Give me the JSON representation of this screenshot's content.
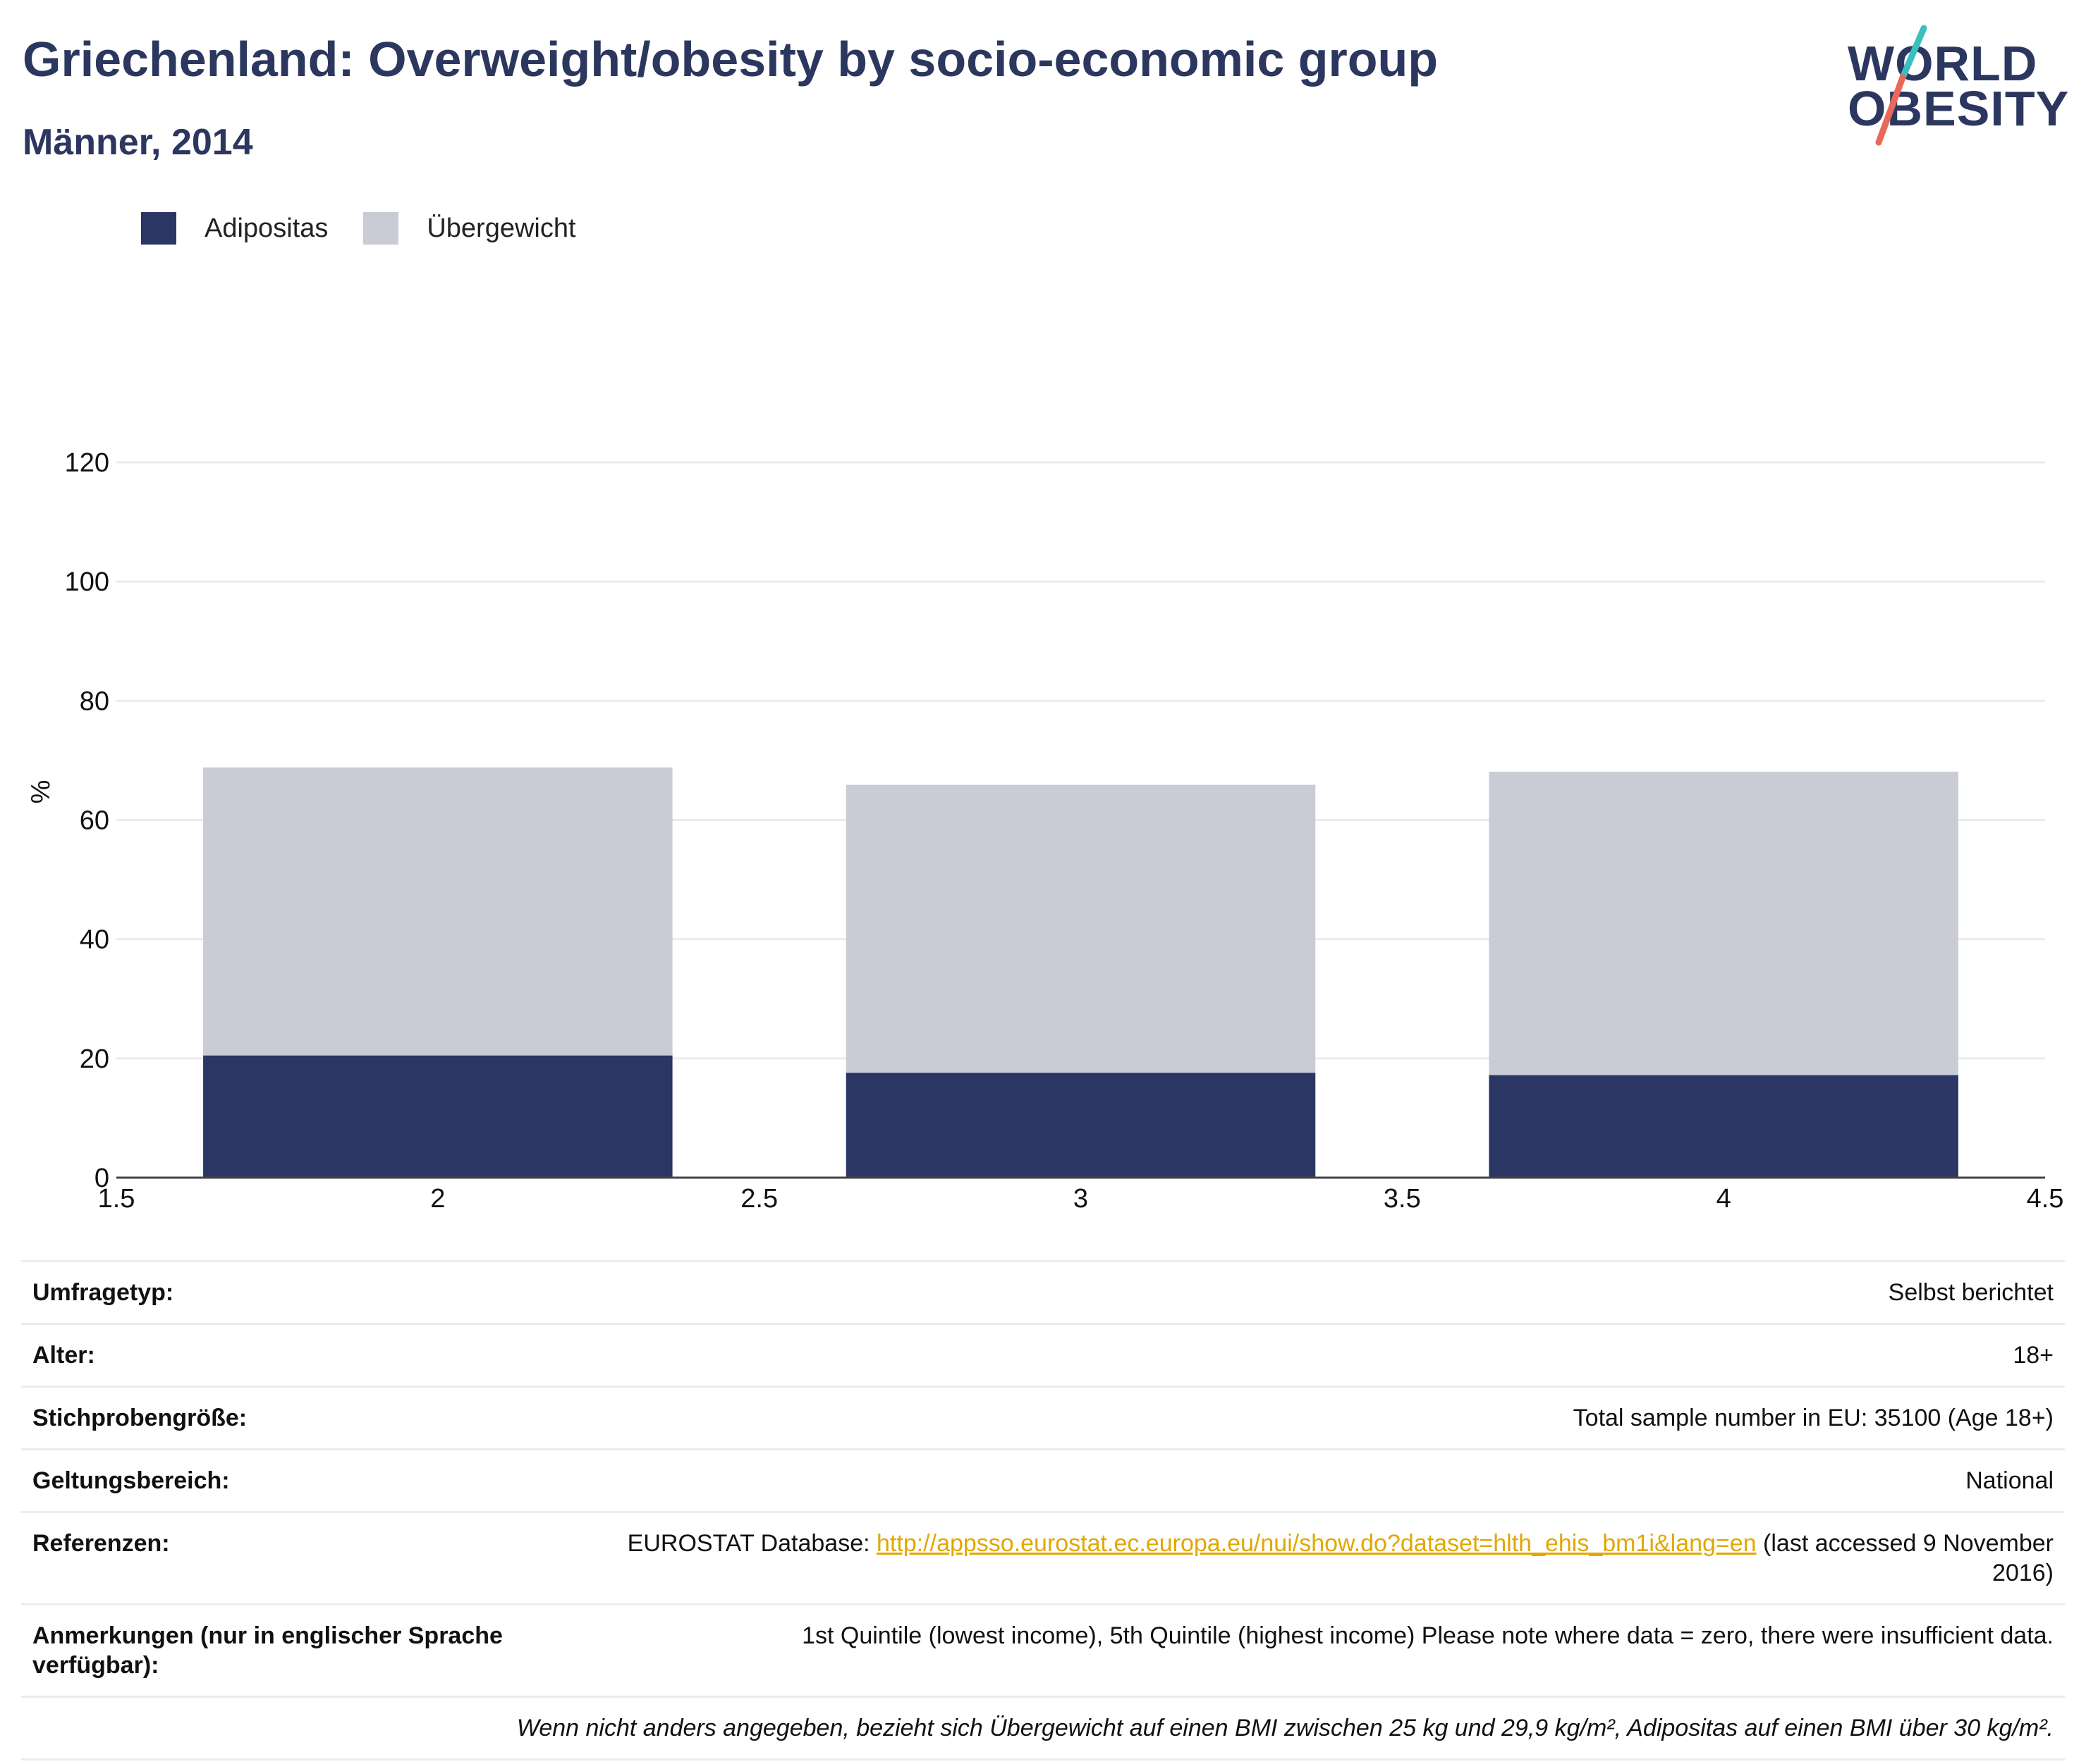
{
  "header": {
    "title": "Griechenland: Overweight/obesity by socio-economic group",
    "subtitle": "Männer, 2014"
  },
  "logo": {
    "line1": "WORLD",
    "line2": "OBESITY",
    "colors": {
      "text": "#2c375f",
      "slash_top": "#3bbfbf",
      "slash_bottom": "#e8685a"
    }
  },
  "legend": {
    "items": [
      {
        "label": "Adipositas",
        "color": "#2b3664"
      },
      {
        "label": "Übergewicht",
        "color": "#c9cbd5"
      }
    ]
  },
  "chart_data": {
    "type": "bar",
    "stacked": true,
    "x": [
      2,
      3,
      4
    ],
    "series": [
      {
        "name": "Adipositas",
        "color": "#2b3664",
        "values": [
          20.5,
          17.6,
          17.2
        ]
      },
      {
        "name": "Übergewicht",
        "color": "#c9cbd5",
        "values": [
          48.3,
          48.3,
          50.9
        ]
      }
    ],
    "xlim": [
      1.5,
      4.5
    ],
    "x_ticks": [
      "1.5",
      "2",
      "2.5",
      "3",
      "3.5",
      "4",
      "4.5"
    ],
    "x_tick_values": [
      1.5,
      2,
      2.5,
      3,
      3.5,
      4,
      4.5
    ],
    "ylim": [
      0,
      120
    ],
    "y_ticks": [
      "0",
      "20",
      "40",
      "60",
      "80",
      "100",
      "120"
    ],
    "y_tick_values": [
      0,
      20,
      40,
      60,
      80,
      100,
      120
    ],
    "ylabel": "%",
    "xlabel": "",
    "grid": true,
    "legend_position": "top-left"
  },
  "info": {
    "survey_type": {
      "label": "Umfragetyp:",
      "value": "Selbst berichtet"
    },
    "age": {
      "label": "Alter:",
      "value": "18+"
    },
    "sample_size": {
      "label": "Stichprobengröße:",
      "value": "Total sample number in EU: 35100 (Age 18+)"
    },
    "scope": {
      "label": "Geltungsbereich:",
      "value": "National"
    },
    "references": {
      "label": "Referenzen:",
      "prefix": "EUROSTAT Database: ",
      "link": "http://appsso.eurostat.ec.europa.eu/nui/show.do?dataset=hlth_ehis_bm1i&lang=en",
      "suffix": " (last accessed 9 November 2016)"
    },
    "notes": {
      "label": "Anmerkungen (nur in englischer Sprache verfügbar):",
      "value": "1st Quintile (lowest income), 5th Quintile (highest income) Please note where data = zero, there were insufficient data."
    },
    "footnote": "Wenn nicht anders angegeben, bezieht sich Übergewicht auf einen BMI zwischen 25 kg und 29,9 kg/m², Adipositas auf einen BMI über 30 kg/m²."
  }
}
